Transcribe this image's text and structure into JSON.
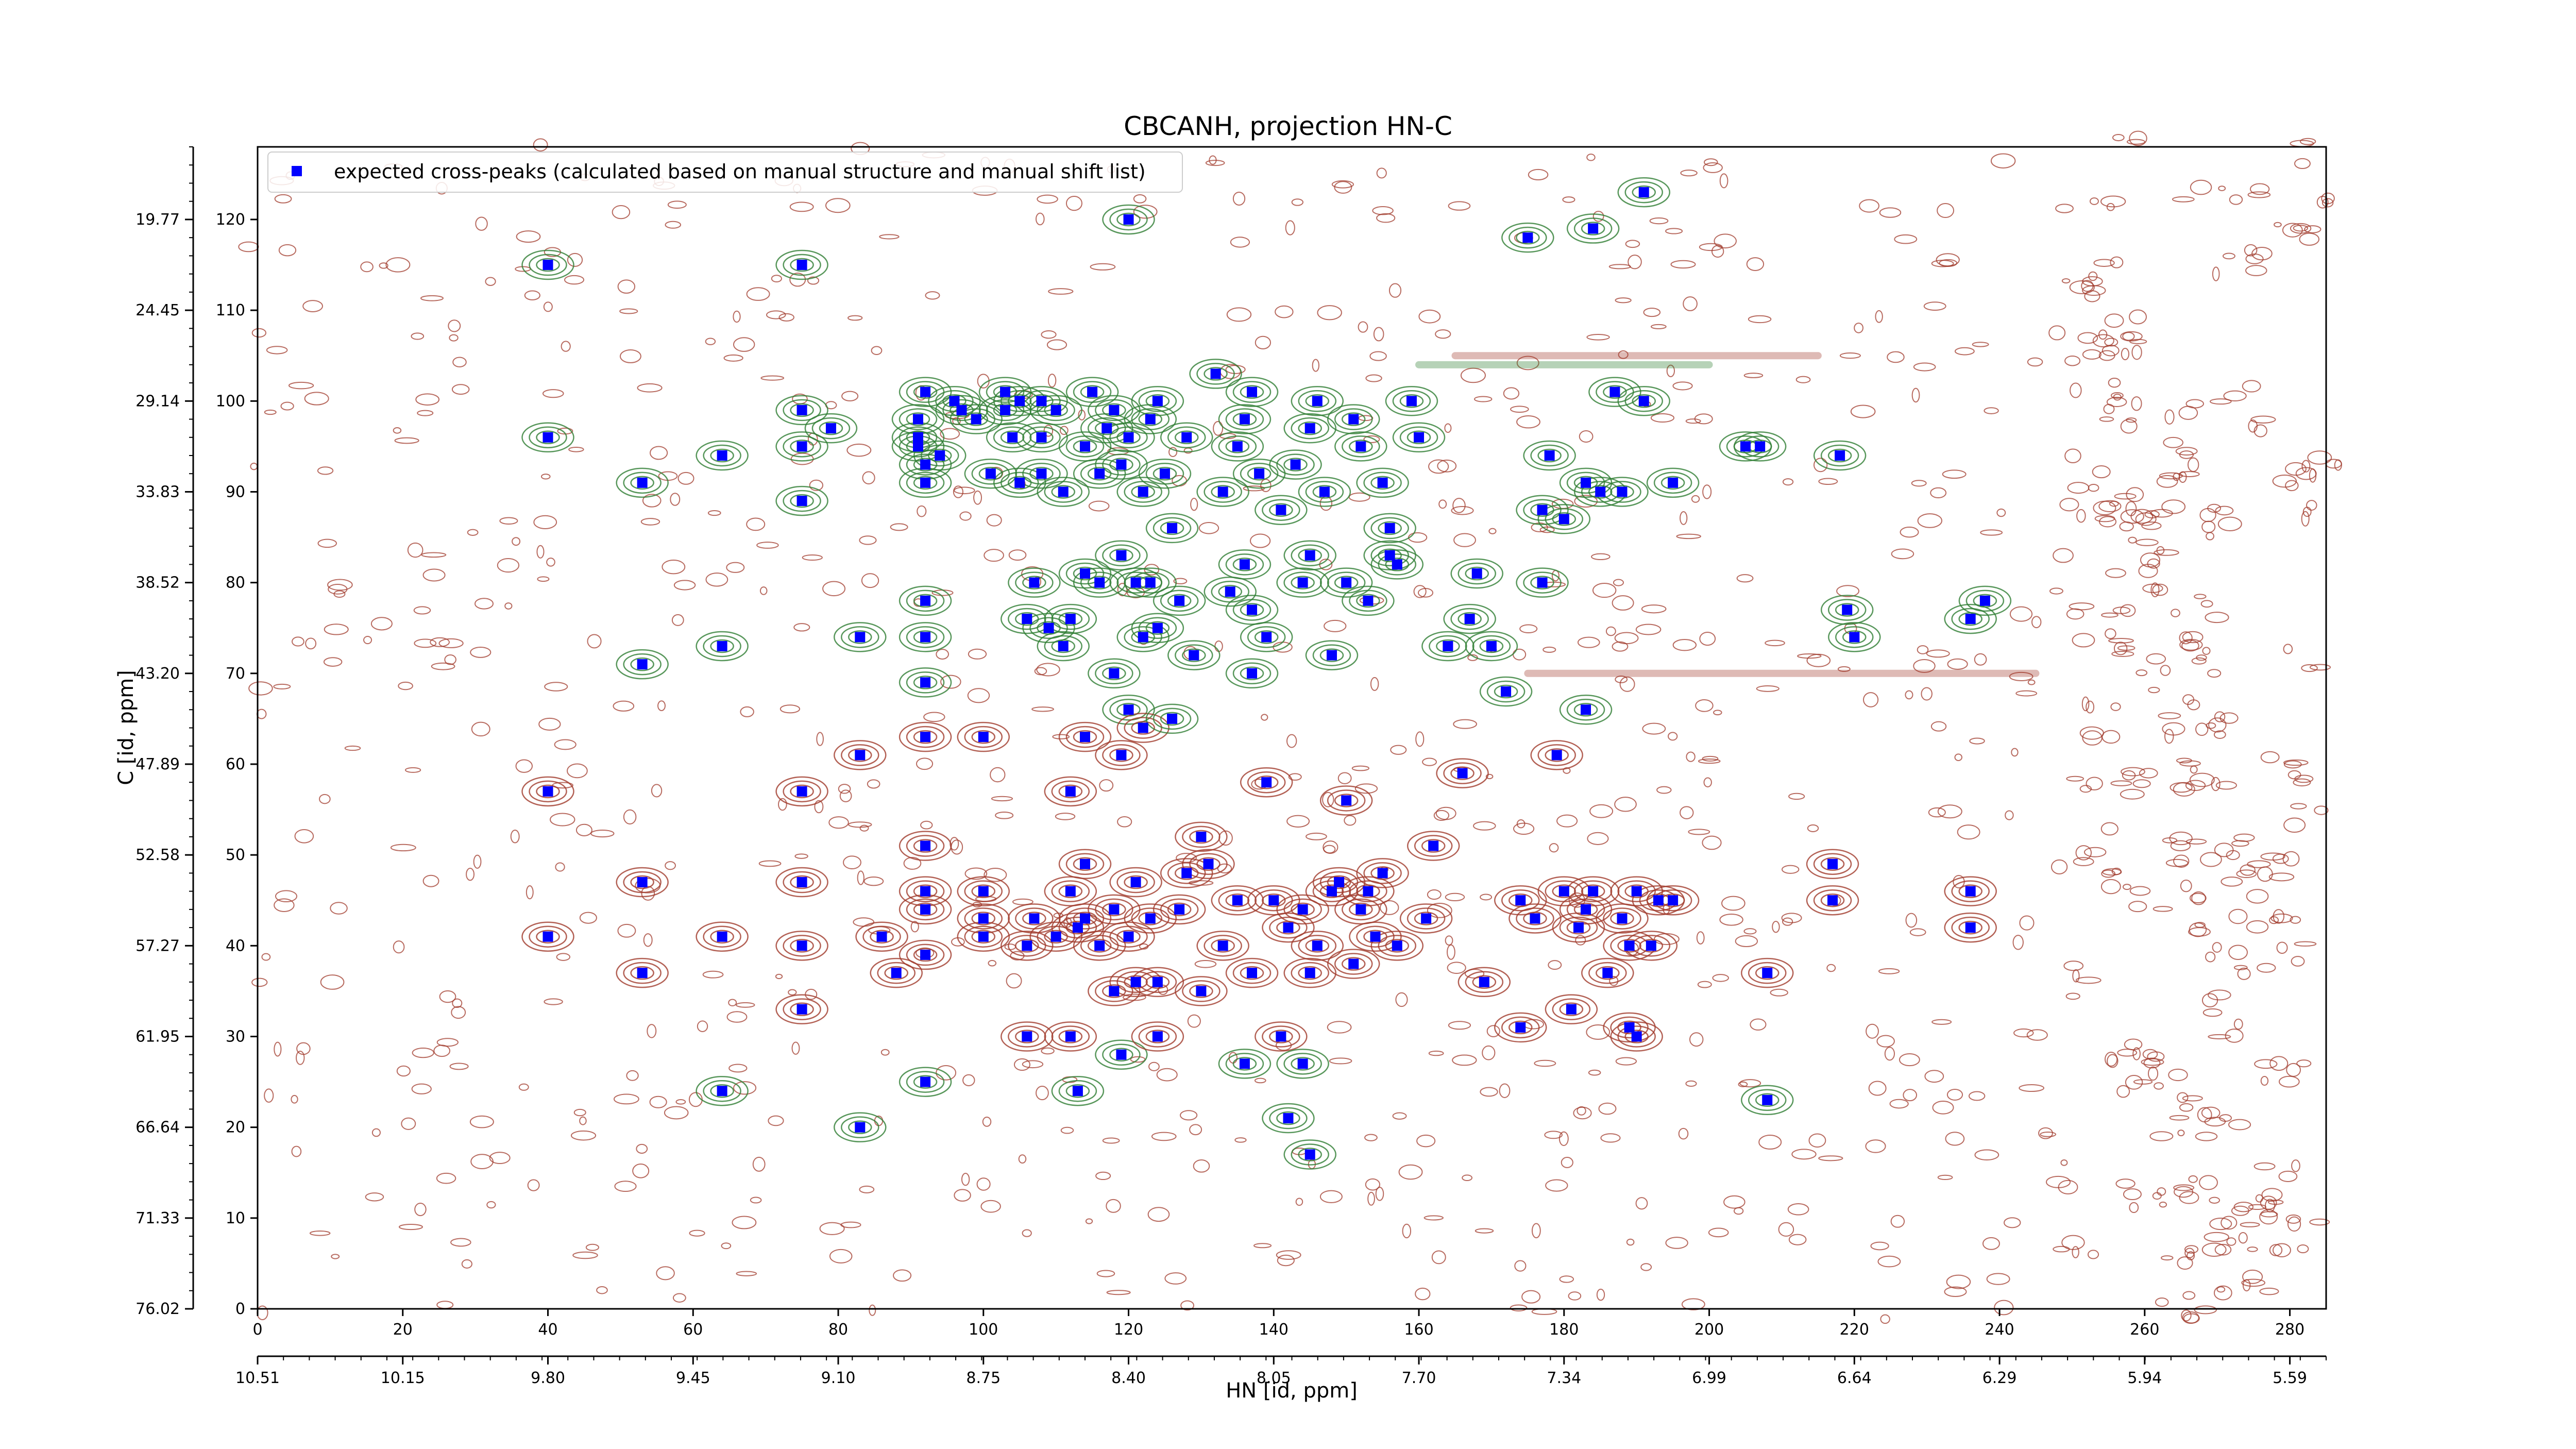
{
  "chart_data": {
    "type": "scatter",
    "title": "CBCANH, projection HN-C",
    "xlabel": "HN [id, ppm]",
    "ylabel": "C [id, ppm]",
    "xlim": [
      0,
      285
    ],
    "ylim": [
      0,
      128
    ],
    "x_ticks": [
      0,
      20,
      40,
      60,
      80,
      100,
      120,
      140,
      160,
      180,
      200,
      220,
      240,
      260,
      280
    ],
    "y_ticks": [
      0,
      10,
      20,
      30,
      40,
      50,
      60,
      70,
      80,
      90,
      100,
      110,
      120
    ],
    "secondary_x_tick_labels": [
      "10.51",
      "10.15",
      "9.80",
      "9.45",
      "9.10",
      "8.75",
      "8.40",
      "8.05",
      "7.70",
      "7.34",
      "6.99",
      "6.64",
      "6.29",
      "5.94",
      "5.59"
    ],
    "secondary_y_tick_labels": [
      "76.02",
      "71.33",
      "66.64",
      "61.95",
      "57.27",
      "52.58",
      "47.89",
      "43.20",
      "38.52",
      "33.83",
      "29.14",
      "24.45",
      "19.77"
    ],
    "legend": {
      "placement": "top-left",
      "entries": [
        "expected cross-peaks (calculated based on manual structure and manual shift list)"
      ]
    },
    "colors": {
      "marker": "#0000ff",
      "positive_contour": "#2e7d32",
      "negative_contour": "#a0392b"
    },
    "series": [
      {
        "name": "expected cross-peaks (calculated based on manual structure and manual shift list)",
        "points": [
          [
            40,
            115
          ],
          [
            40,
            96
          ],
          [
            40,
            57
          ],
          [
            40,
            41
          ],
          [
            53,
            91
          ],
          [
            53,
            71
          ],
          [
            53,
            47
          ],
          [
            53,
            37
          ],
          [
            64,
            94
          ],
          [
            64,
            41
          ],
          [
            64,
            24
          ],
          [
            64,
            73
          ],
          [
            75,
            115
          ],
          [
            75,
            99
          ],
          [
            75,
            95
          ],
          [
            75,
            89
          ],
          [
            75,
            57
          ],
          [
            75,
            47
          ],
          [
            75,
            40
          ],
          [
            75,
            33
          ],
          [
            79,
            97
          ],
          [
            83,
            74
          ],
          [
            83,
            61
          ],
          [
            83,
            20
          ],
          [
            86,
            41
          ],
          [
            88,
            37
          ],
          [
            91,
            98
          ],
          [
            91,
            96
          ],
          [
            91,
            95
          ],
          [
            92,
            101
          ],
          [
            92,
            93
          ],
          [
            92,
            91
          ],
          [
            92,
            78
          ],
          [
            92,
            74
          ],
          [
            92,
            69
          ],
          [
            92,
            63
          ],
          [
            92,
            51
          ],
          [
            92,
            46
          ],
          [
            92,
            44
          ],
          [
            92,
            39
          ],
          [
            92,
            25
          ],
          [
            94,
            94
          ],
          [
            96,
            100
          ],
          [
            97,
            99
          ],
          [
            99,
            98
          ],
          [
            100,
            63
          ],
          [
            100,
            46
          ],
          [
            100,
            43
          ],
          [
            100,
            41
          ],
          [
            101,
            92
          ],
          [
            103,
            99
          ],
          [
            103,
            101
          ],
          [
            104,
            96
          ],
          [
            105,
            100
          ],
          [
            105,
            91
          ],
          [
            106,
            76
          ],
          [
            106,
            40
          ],
          [
            106,
            30
          ],
          [
            107,
            80
          ],
          [
            107,
            43
          ],
          [
            108,
            100
          ],
          [
            108,
            96
          ],
          [
            108,
            92
          ],
          [
            109,
            75
          ],
          [
            110,
            99
          ],
          [
            110,
            41
          ],
          [
            111,
            90
          ],
          [
            111,
            73
          ],
          [
            112,
            76
          ],
          [
            112,
            57
          ],
          [
            112,
            46
          ],
          [
            112,
            30
          ],
          [
            113,
            42
          ],
          [
            113,
            24
          ],
          [
            114,
            95
          ],
          [
            114,
            81
          ],
          [
            114,
            63
          ],
          [
            114,
            49
          ],
          [
            114,
            43
          ],
          [
            115,
            101
          ],
          [
            116,
            92
          ],
          [
            116,
            80
          ],
          [
            116,
            40
          ],
          [
            117,
            97
          ],
          [
            118,
            99
          ],
          [
            118,
            70
          ],
          [
            118,
            44
          ],
          [
            118,
            35
          ],
          [
            119,
            93
          ],
          [
            119,
            83
          ],
          [
            119,
            61
          ],
          [
            119,
            28
          ],
          [
            120,
            120
          ],
          [
            120,
            96
          ],
          [
            120,
            66
          ],
          [
            120,
            41
          ],
          [
            121,
            80
          ],
          [
            121,
            47
          ],
          [
            121,
            36
          ],
          [
            122,
            90
          ],
          [
            122,
            74
          ],
          [
            122,
            64
          ],
          [
            123,
            98
          ],
          [
            123,
            80
          ],
          [
            123,
            43
          ],
          [
            124,
            100
          ],
          [
            124,
            75
          ],
          [
            124,
            36
          ],
          [
            124,
            30
          ],
          [
            125,
            92
          ],
          [
            126,
            86
          ],
          [
            126,
            65
          ],
          [
            127,
            78
          ],
          [
            127,
            44
          ],
          [
            128,
            96
          ],
          [
            128,
            48
          ],
          [
            129,
            72
          ],
          [
            130,
            52
          ],
          [
            130,
            35
          ],
          [
            131,
            49
          ],
          [
            132,
            103
          ],
          [
            133,
            90
          ],
          [
            133,
            40
          ],
          [
            134,
            79
          ],
          [
            135,
            95
          ],
          [
            135,
            45
          ],
          [
            136,
            98
          ],
          [
            136,
            82
          ],
          [
            136,
            27
          ],
          [
            137,
            101
          ],
          [
            137,
            77
          ],
          [
            137,
            70
          ],
          [
            137,
            37
          ],
          [
            138,
            92
          ],
          [
            139,
            74
          ],
          [
            139,
            58
          ],
          [
            140,
            45
          ],
          [
            141,
            88
          ],
          [
            141,
            30
          ],
          [
            142,
            42
          ],
          [
            142,
            21
          ],
          [
            143,
            93
          ],
          [
            144,
            80
          ],
          [
            144,
            44
          ],
          [
            144,
            27
          ],
          [
            145,
            97
          ],
          [
            145,
            83
          ],
          [
            145,
            37
          ],
          [
            145,
            17
          ],
          [
            146,
            100
          ],
          [
            146,
            40
          ],
          [
            147,
            90
          ],
          [
            148,
            72
          ],
          [
            148,
            46
          ],
          [
            149,
            47
          ],
          [
            150,
            80
          ],
          [
            150,
            56
          ],
          [
            151,
            98
          ],
          [
            151,
            38
          ],
          [
            152,
            95
          ],
          [
            152,
            44
          ],
          [
            153,
            78
          ],
          [
            153,
            46
          ],
          [
            154,
            41
          ],
          [
            155,
            91
          ],
          [
            155,
            48
          ],
          [
            156,
            86
          ],
          [
            156,
            83
          ],
          [
            157,
            40
          ],
          [
            157,
            82
          ],
          [
            159,
            100
          ],
          [
            160,
            96
          ],
          [
            161,
            43
          ],
          [
            162,
            51
          ],
          [
            164,
            73
          ],
          [
            166,
            59
          ],
          [
            167,
            76
          ],
          [
            168,
            81
          ],
          [
            169,
            36
          ],
          [
            170,
            73
          ],
          [
            172,
            68
          ],
          [
            174,
            45
          ],
          [
            174,
            31
          ],
          [
            175,
            118
          ],
          [
            176,
            43
          ],
          [
            177,
            80
          ],
          [
            177,
            88
          ],
          [
            178,
            94
          ],
          [
            179,
            61
          ],
          [
            180,
            87
          ],
          [
            180,
            46
          ],
          [
            181,
            33
          ],
          [
            182,
            42
          ],
          [
            183,
            66
          ],
          [
            183,
            91
          ],
          [
            183,
            44
          ],
          [
            184,
            119
          ],
          [
            184,
            46
          ],
          [
            185,
            90
          ],
          [
            186,
            37
          ],
          [
            187,
            101
          ],
          [
            188,
            43
          ],
          [
            188,
            90
          ],
          [
            189,
            40
          ],
          [
            189,
            31
          ],
          [
            190,
            46
          ],
          [
            190,
            30
          ],
          [
            191,
            123
          ],
          [
            191,
            100
          ],
          [
            192,
            40
          ],
          [
            193,
            45
          ],
          [
            195,
            91
          ],
          [
            195,
            45
          ],
          [
            205,
            95
          ],
          [
            207,
            95
          ],
          [
            208,
            37
          ],
          [
            208,
            23
          ],
          [
            217,
            49
          ],
          [
            217,
            45
          ],
          [
            218,
            94
          ],
          [
            219,
            77
          ],
          [
            220,
            74
          ],
          [
            236,
            42
          ],
          [
            236,
            46
          ],
          [
            238,
            78
          ],
          [
            236,
            76
          ]
        ]
      }
    ]
  }
}
